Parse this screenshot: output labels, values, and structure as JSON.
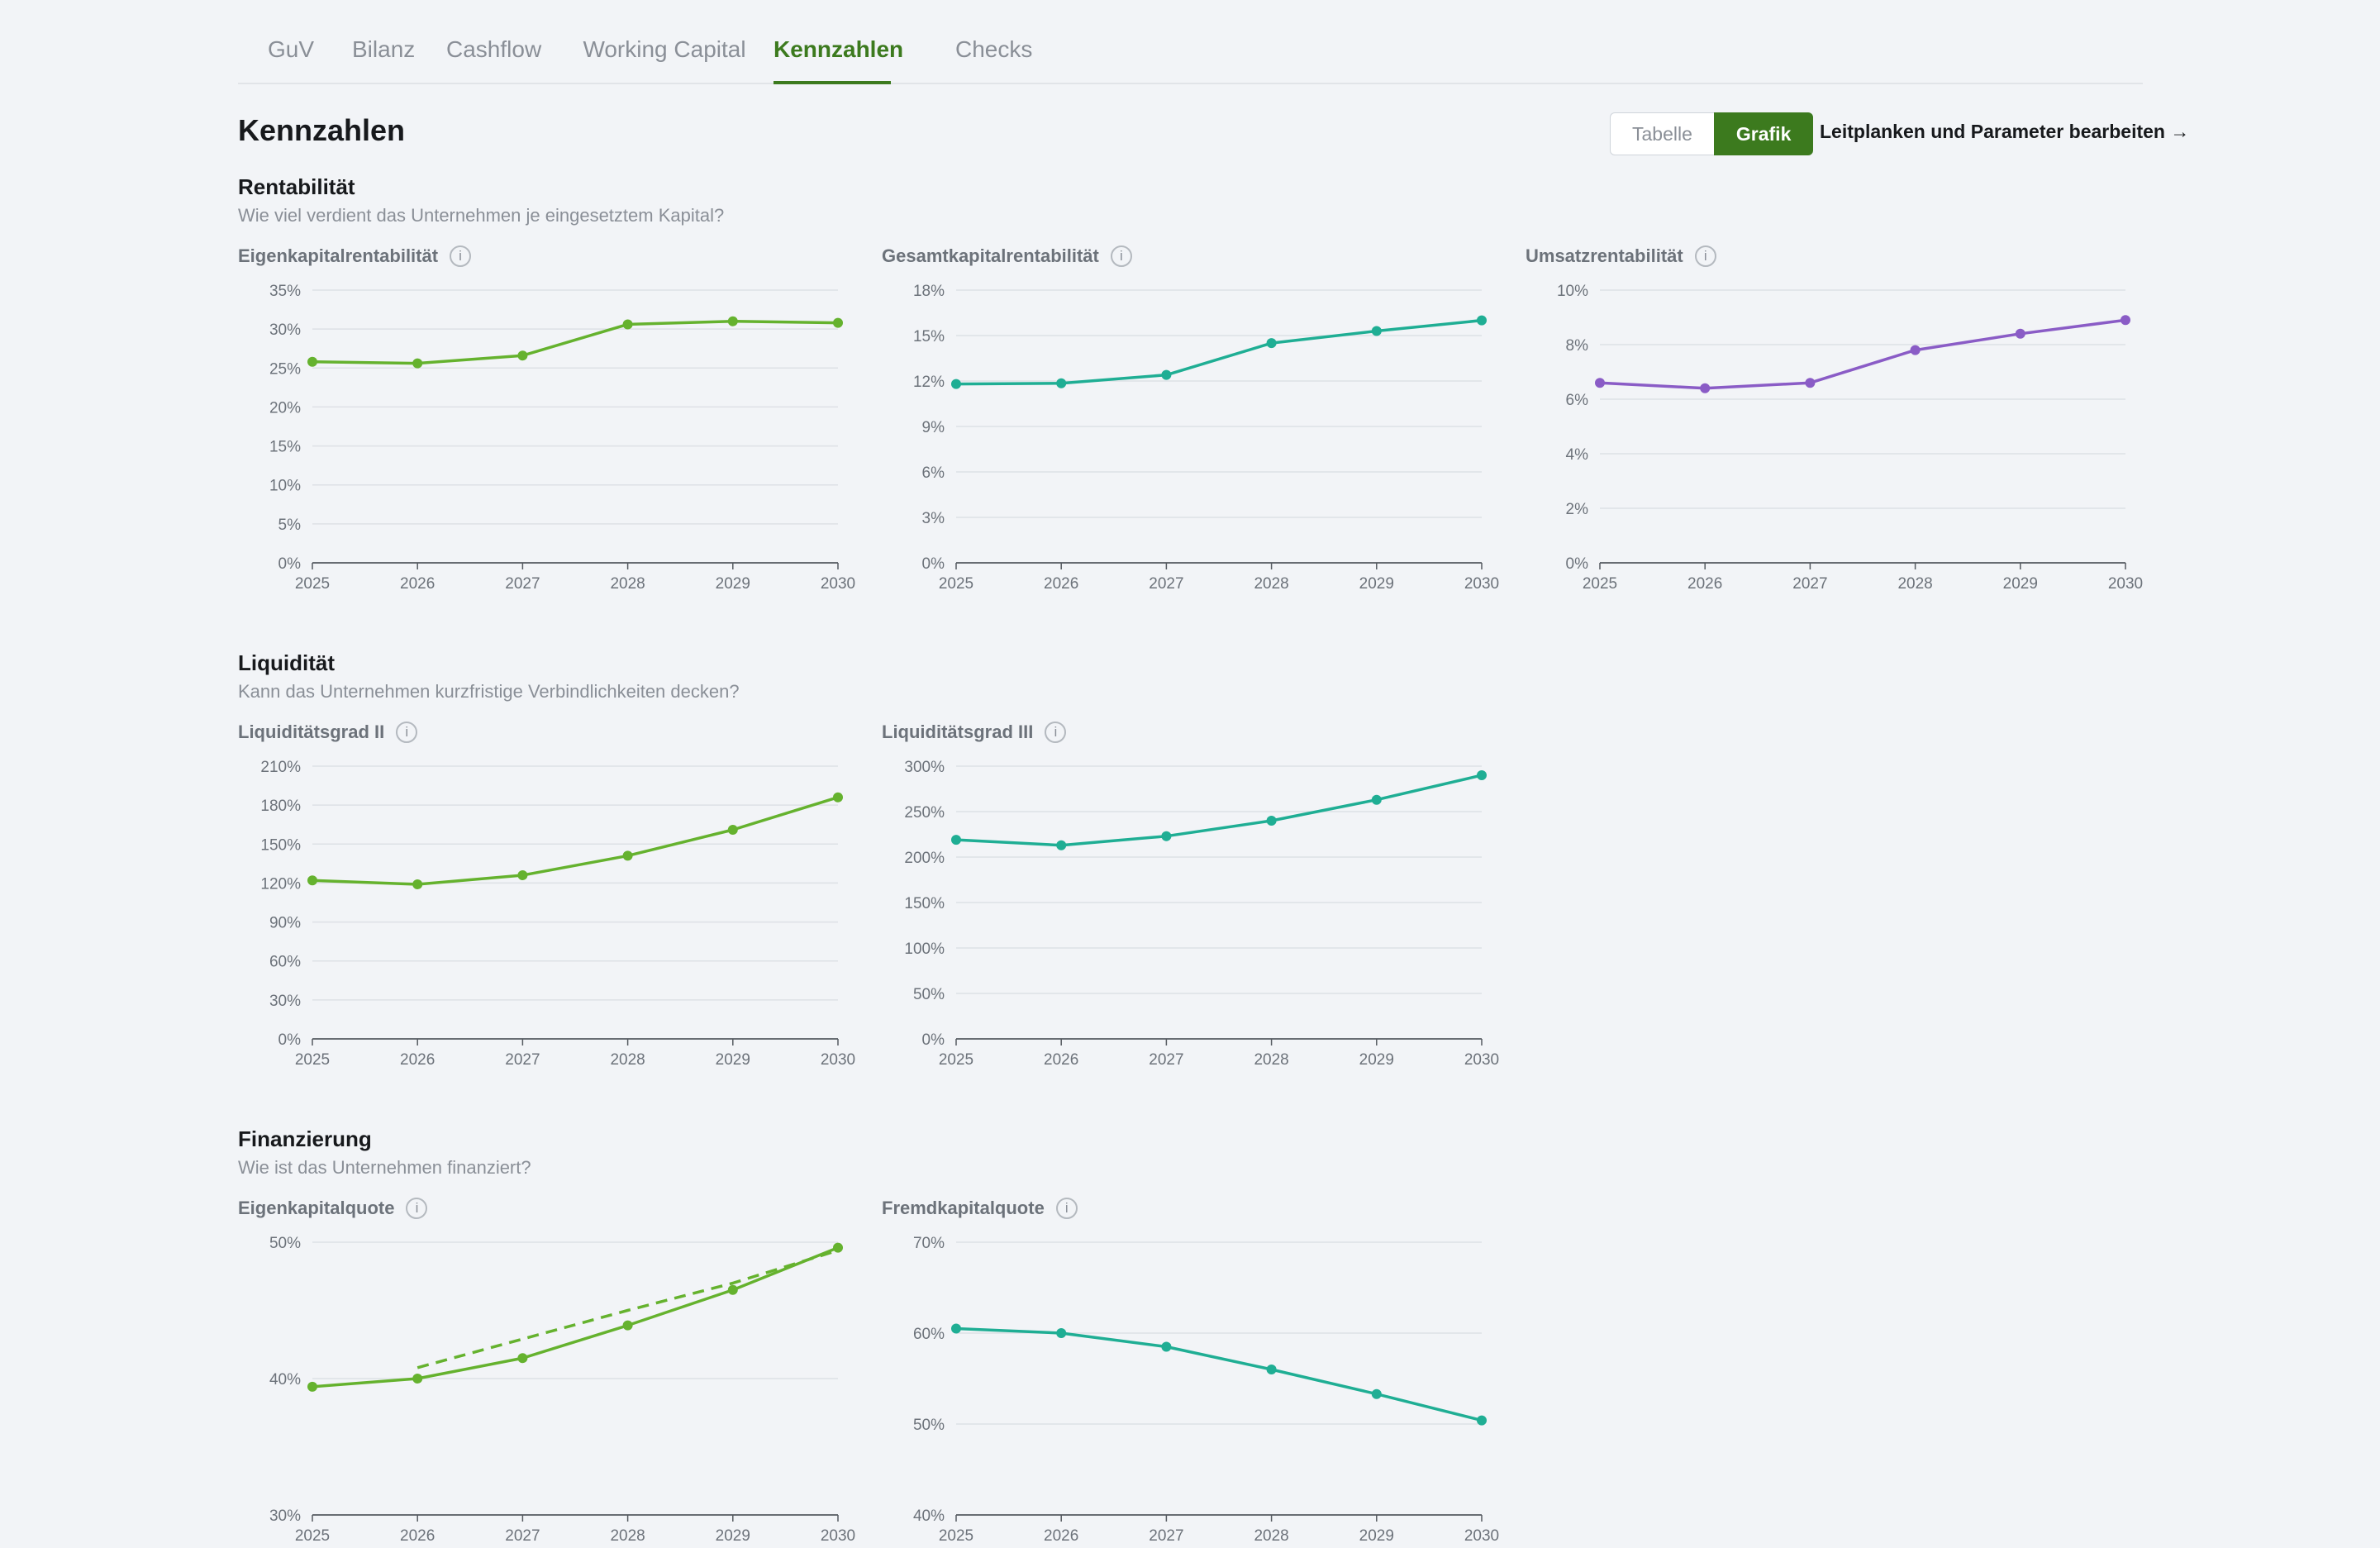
{
  "tabs": [
    {
      "label": "GuV"
    },
    {
      "label": "Bilanz"
    },
    {
      "label": "Cashflow"
    },
    {
      "label": "Working Capital"
    },
    {
      "label": "Kennzahlen",
      "active": true
    },
    {
      "label": "Checks"
    }
  ],
  "page": {
    "title": "Kennzahlen",
    "toggle": {
      "tabelle": "Tabelle",
      "grafik": "Grafik",
      "selected": "Grafik"
    },
    "params_link": "Leitplanken und Parameter bearbeiten →"
  },
  "sections": {
    "rentabilitaet": {
      "title": "Rentabilität",
      "subtitle": "Wie viel verdient das Unternehmen je eingesetztem Kapital?"
    },
    "liquiditaet": {
      "title": "Liquidität",
      "subtitle": "Kann das Unternehmen kurzfristige Verbindlichkeiten decken?"
    },
    "finanzierung": {
      "title": "Finanzierung",
      "subtitle": "Wie ist das Unternehmen finanziert?"
    }
  },
  "info_icon": "i",
  "colors": {
    "green": "#65b22e",
    "teal": "#1fae94",
    "purple": "#8a5cc6",
    "accent": "#3c7a1e"
  },
  "chart_data": [
    {
      "id": "ekr",
      "type": "line",
      "title": "Eigenkapitalrentabilität",
      "x": [
        2025,
        2026,
        2027,
        2028,
        2029,
        2030
      ],
      "series": [
        {
          "values": [
            25.8,
            25.6,
            26.6,
            30.6,
            31.0,
            30.8
          ],
          "color": "#65b22e"
        }
      ],
      "ylim": [
        0,
        35
      ],
      "yticks": [
        0,
        5,
        10,
        15,
        20,
        25,
        30,
        35
      ],
      "unit": "%",
      "grid": true
    },
    {
      "id": "gkr",
      "type": "line",
      "title": "Gesamtkapitalrentabilität",
      "x": [
        2025,
        2026,
        2027,
        2028,
        2029,
        2030
      ],
      "series": [
        {
          "values": [
            11.8,
            11.85,
            12.4,
            14.5,
            15.3,
            16.0
          ],
          "color": "#1fae94"
        }
      ],
      "ylim": [
        0,
        18
      ],
      "yticks": [
        0,
        3,
        6,
        9,
        12,
        15,
        18
      ],
      "unit": "%",
      "grid": true
    },
    {
      "id": "umr",
      "type": "line",
      "title": "Umsatzrentabilität",
      "x": [
        2025,
        2026,
        2027,
        2028,
        2029,
        2030
      ],
      "series": [
        {
          "values": [
            6.6,
            6.4,
            6.6,
            7.8,
            8.4,
            8.9
          ],
          "color": "#8a5cc6"
        }
      ],
      "ylim": [
        0,
        10
      ],
      "yticks": [
        0,
        2,
        4,
        6,
        8,
        10
      ],
      "unit": "%",
      "grid": true
    },
    {
      "id": "liq2",
      "type": "line",
      "title": "Liquiditätsgrad II",
      "x": [
        2025,
        2026,
        2027,
        2028,
        2029,
        2030
      ],
      "series": [
        {
          "values": [
            122,
            119,
            126,
            141,
            161,
            186
          ],
          "color": "#65b22e"
        }
      ],
      "ylim": [
        0,
        210
      ],
      "yticks": [
        0,
        30,
        60,
        90,
        120,
        150,
        180,
        210
      ],
      "unit": "%",
      "grid": true
    },
    {
      "id": "liq3",
      "type": "line",
      "title": "Liquiditätsgrad III",
      "x": [
        2025,
        2026,
        2027,
        2028,
        2029,
        2030
      ],
      "series": [
        {
          "values": [
            219,
            213,
            223,
            240,
            263,
            290
          ],
          "color": "#1fae94"
        }
      ],
      "ylim": [
        0,
        300
      ],
      "yticks": [
        0,
        50,
        100,
        150,
        200,
        250,
        300
      ],
      "unit": "%",
      "grid": true
    },
    {
      "id": "ekq",
      "type": "line",
      "title": "Eigenkapitalquote",
      "x": [
        2025,
        2026,
        2027,
        2028,
        2029,
        2030
      ],
      "series": [
        {
          "values": [
            39.4,
            40.0,
            41.5,
            43.9,
            46.5,
            49.6
          ],
          "color": "#65b22e"
        },
        {
          "values": [
            null,
            40.8,
            42.9,
            45.0,
            47.0,
            49.4
          ],
          "color": "#65b22e",
          "dashed": true,
          "markers": false
        }
      ],
      "ylim": [
        30,
        50
      ],
      "yticks": [
        30,
        40,
        50
      ],
      "unit": "%",
      "grid": true
    },
    {
      "id": "fkq",
      "type": "line",
      "title": "Fremdkapitalquote",
      "x": [
        2025,
        2026,
        2027,
        2028,
        2029,
        2030
      ],
      "series": [
        {
          "values": [
            60.5,
            60.0,
            58.5,
            56.0,
            53.3,
            50.4
          ],
          "color": "#1fae94"
        }
      ],
      "ylim": [
        40,
        70
      ],
      "yticks": [
        40,
        50,
        60,
        70
      ],
      "unit": "%",
      "grid": true
    }
  ]
}
